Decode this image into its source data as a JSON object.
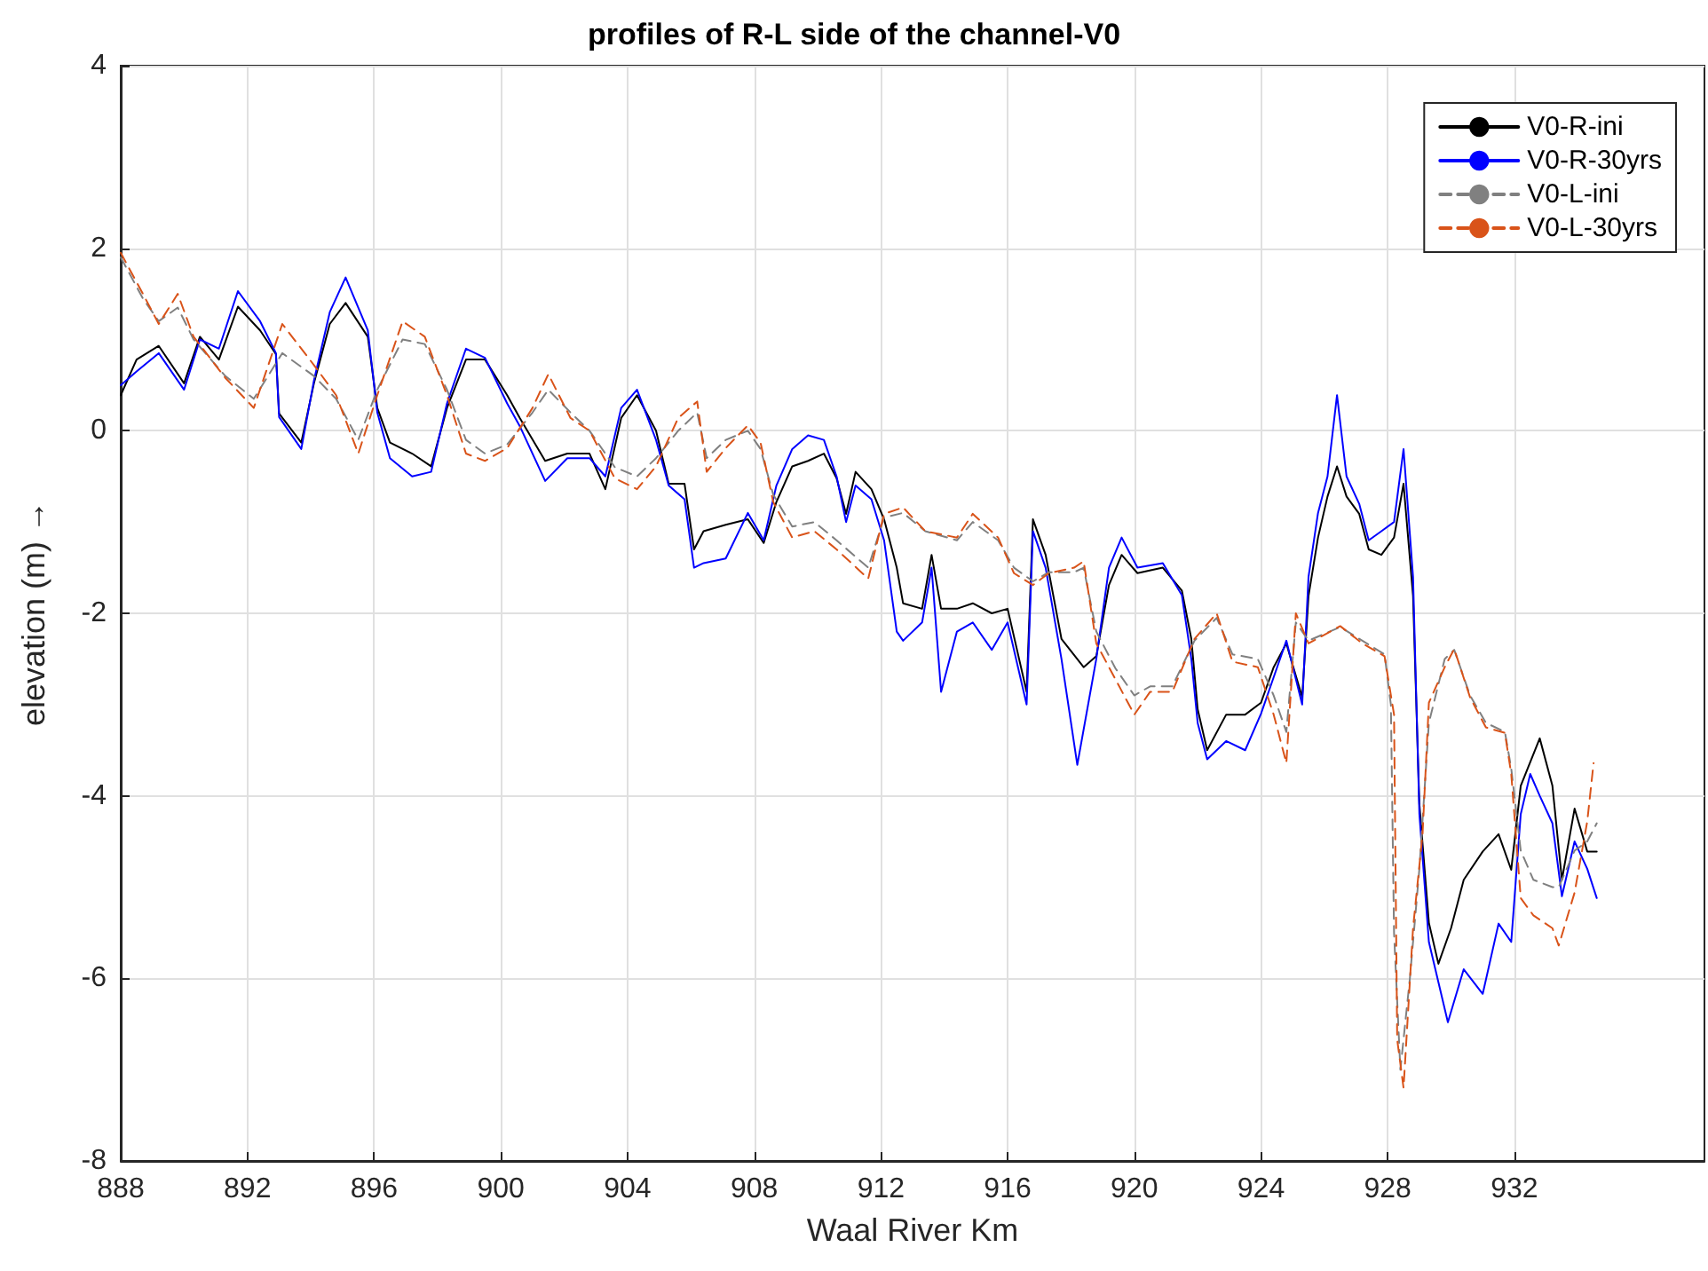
{
  "chart_data": {
    "type": "line",
    "title": "profiles of R-L side of the channel-V0",
    "xlabel": "Waal River Km",
    "ylabel": "elevation (m) →",
    "xlim": [
      888,
      938
    ],
    "xticks": [
      888,
      892,
      896,
      900,
      904,
      908,
      912,
      916,
      920,
      924,
      928,
      932
    ],
    "ylim": [
      -8,
      4
    ],
    "yticks": [
      -8,
      -6,
      -4,
      -2,
      0,
      2,
      4
    ],
    "grid": true,
    "legend": "top right",
    "marker": "none",
    "series": [
      {
        "name": "V0-R-ini",
        "color": "#000000",
        "line_style": "solid",
        "x": [
          888,
          888.5,
          889.2,
          890,
          890.5,
          891.1,
          891.7,
          892.4,
          892.9,
          893,
          893.7,
          894.1,
          894.6,
          895.1,
          895.8,
          896.1,
          896.5,
          897.2,
          897.8,
          898.3,
          898.9,
          899.5,
          900.2,
          900.6,
          901.4,
          902.1,
          902.8,
          903.3,
          903.8,
          904.3,
          904.9,
          905.3,
          905.8,
          906.1,
          906.4,
          907.1,
          907.8,
          908.3,
          908.7,
          909.2,
          909.7,
          910.2,
          910.6,
          910.9,
          911.2,
          911.7,
          912.1,
          912.5,
          912.7,
          913.3,
          913.6,
          913.9,
          914.4,
          914.9,
          915.5,
          916,
          916.6,
          916.8,
          917.2,
          917.7,
          918.4,
          918.8,
          919.2,
          919.6,
          920.1,
          920.9,
          921.5,
          921.8,
          922,
          922.3,
          922.9,
          923.5,
          924,
          924.4,
          924.8,
          925.3,
          925.5,
          925.8,
          926.1,
          926.4,
          926.7,
          927.1,
          927.4,
          927.8,
          928.2,
          928.5,
          928.8,
          929,
          929.3,
          929.6,
          930,
          930.4,
          931,
          931.5,
          931.9,
          932.2,
          932.8,
          933.2,
          933.5,
          933.9,
          934.3,
          934.6
        ],
        "values": [
          0.39,
          0.78,
          0.93,
          0.52,
          1.03,
          0.78,
          1.36,
          1.1,
          0.84,
          0.19,
          -0.13,
          0.52,
          1.17,
          1.4,
          1.03,
          0.25,
          -0.13,
          -0.25,
          -0.39,
          0.25,
          0.78,
          0.78,
          0.39,
          0.14,
          -0.33,
          -0.25,
          -0.25,
          -0.64,
          0.14,
          0.39,
          0,
          -0.58,
          -0.58,
          -1.3,
          -1.1,
          -1.03,
          -0.97,
          -1.23,
          -0.78,
          -0.39,
          -0.33,
          -0.25,
          -0.52,
          -0.91,
          -0.45,
          -0.64,
          -0.97,
          -1.5,
          -1.89,
          -1.95,
          -1.36,
          -1.95,
          -1.95,
          -1.89,
          -2,
          -1.95,
          -2.86,
          -0.97,
          -1.36,
          -2.28,
          -2.59,
          -2.47,
          -1.69,
          -1.36,
          -1.56,
          -1.5,
          -1.75,
          -2.28,
          -3.05,
          -3.5,
          -3.11,
          -3.11,
          -2.98,
          -2.59,
          -2.33,
          -2.92,
          -1.81,
          -1.17,
          -0.72,
          -0.39,
          -0.72,
          -0.91,
          -1.3,
          -1.36,
          -1.17,
          -0.58,
          -1.81,
          -4.09,
          -5.39,
          -5.84,
          -5.45,
          -4.92,
          -4.61,
          -4.42,
          -4.81,
          -3.89,
          -3.37,
          -3.89,
          -4.92,
          -4.14,
          -4.61,
          -4.61
        ]
      },
      {
        "name": "V0-R-30yrs",
        "color": "#0000ff",
        "line_style": "solid",
        "x": [
          888,
          888.5,
          889.2,
          890,
          890.5,
          891.1,
          891.7,
          892.4,
          892.9,
          893,
          893.7,
          894.1,
          894.6,
          895.1,
          895.8,
          896.1,
          896.5,
          897.2,
          897.8,
          898.3,
          898.9,
          899.5,
          900.2,
          900.6,
          901.4,
          902.1,
          902.8,
          903.3,
          903.8,
          904.3,
          904.9,
          905.3,
          905.8,
          906.1,
          906.4,
          907.1,
          907.8,
          908.3,
          908.7,
          909.2,
          909.7,
          910.2,
          910.6,
          910.9,
          911.2,
          911.7,
          912.1,
          912.5,
          912.7,
          913.3,
          913.6,
          913.9,
          914.4,
          914.9,
          915.5,
          916,
          916.6,
          916.8,
          917.2,
          917.7,
          918.2,
          918.8,
          919.2,
          919.6,
          920.1,
          920.9,
          921.5,
          921.8,
          922,
          922.3,
          922.9,
          923.5,
          924,
          924.4,
          924.8,
          925.3,
          925.5,
          925.8,
          926.1,
          926.4,
          926.7,
          927.1,
          927.4,
          927.8,
          928.2,
          928.5,
          928.8,
          929,
          929.3,
          929.9,
          930.4,
          931,
          931.5,
          931.9,
          932.2,
          932.5,
          932.8,
          933.2,
          933.5,
          933.9,
          934.3,
          934.6
        ],
        "values": [
          0.5,
          0.65,
          0.85,
          0.45,
          1.0,
          0.9,
          1.53,
          1.2,
          0.85,
          0.15,
          -0.2,
          0.55,
          1.3,
          1.68,
          1.1,
          0.2,
          -0.3,
          -0.5,
          -0.45,
          0.3,
          0.9,
          0.8,
          0.3,
          0.05,
          -0.55,
          -0.3,
          -0.3,
          -0.5,
          0.25,
          0.45,
          -0.1,
          -0.6,
          -0.75,
          -1.5,
          -1.45,
          -1.4,
          -0.9,
          -1.2,
          -0.6,
          -0.2,
          -0.05,
          -0.1,
          -0.5,
          -1.0,
          -0.6,
          -0.75,
          -1.2,
          -2.2,
          -2.3,
          -2.1,
          -1.5,
          -2.86,
          -2.2,
          -2.1,
          -2.4,
          -2.1,
          -3.0,
          -1.1,
          -1.5,
          -2.5,
          -3.66,
          -2.5,
          -1.5,
          -1.17,
          -1.5,
          -1.45,
          -1.8,
          -2.5,
          -3.2,
          -3.6,
          -3.4,
          -3.5,
          -3.1,
          -2.7,
          -2.3,
          -3.0,
          -1.6,
          -0.9,
          -0.5,
          0.39,
          -0.5,
          -0.8,
          -1.2,
          -1.1,
          -1.0,
          -0.2,
          -1.6,
          -4.2,
          -5.6,
          -6.48,
          -5.9,
          -6.17,
          -5.4,
          -5.6,
          -4.2,
          -3.76,
          -4.0,
          -4.3,
          -5.1,
          -4.5,
          -4.8,
          -5.12
        ]
      },
      {
        "name": "V0-L-ini",
        "color": "#808080",
        "line_style": "dashed",
        "x": [
          888,
          888.7,
          889.2,
          889.8,
          890.3,
          891.3,
          892.2,
          893.1,
          894.1,
          894.8,
          895.5,
          896.1,
          896.9,
          897.6,
          898.3,
          898.9,
          899.5,
          900.2,
          901,
          901.5,
          902.2,
          902.8,
          903.6,
          904.3,
          904.9,
          905.6,
          906.2,
          906.5,
          907.1,
          907.8,
          908.2,
          908.6,
          909.2,
          909.9,
          910.6,
          911.6,
          912.1,
          912.7,
          913.4,
          914.4,
          914.9,
          915.7,
          916.2,
          916.8,
          917.3,
          918.1,
          918.4,
          918.8,
          919.4,
          920,
          920.5,
          921.2,
          921.9,
          922.6,
          923.1,
          923.9,
          924.4,
          924.8,
          925.1,
          925.5,
          926.5,
          927.2,
          927.9,
          928.1,
          928.2,
          928.4,
          928.7,
          929,
          929.3,
          929.8,
          930.1,
          930.6,
          931.1,
          931.7,
          931.9,
          932.2,
          932.6,
          933.2,
          933.4,
          933.9,
          934.3,
          934.6
        ],
        "values": [
          1.9,
          1.45,
          1.2,
          1.35,
          1.0,
          0.6,
          0.35,
          0.85,
          0.6,
          0.35,
          -0.1,
          0.45,
          1.0,
          0.95,
          0.45,
          -0.1,
          -0.25,
          -0.15,
          0.2,
          0.45,
          0.2,
          0.0,
          -0.4,
          -0.5,
          -0.3,
          0.0,
          0.2,
          -0.3,
          -0.1,
          0.0,
          -0.2,
          -0.7,
          -1.05,
          -1.0,
          -1.2,
          -1.5,
          -0.95,
          -0.9,
          -1.1,
          -1.2,
          -1.0,
          -1.2,
          -1.5,
          -1.65,
          -1.55,
          -1.55,
          -1.5,
          -2.2,
          -2.6,
          -2.9,
          -2.8,
          -2.8,
          -2.3,
          -2.05,
          -2.45,
          -2.5,
          -2.9,
          -3.3,
          -2.1,
          -2.3,
          -2.15,
          -2.3,
          -2.45,
          -3.0,
          -5.5,
          -7.0,
          -6.0,
          -4.8,
          -3.2,
          -2.5,
          -2.4,
          -2.9,
          -3.2,
          -3.3,
          -3.7,
          -4.6,
          -4.92,
          -5.0,
          -5.0,
          -4.6,
          -4.5,
          -4.3
        ]
      },
      {
        "name": "V0-L-30yrs",
        "color": "#d95319",
        "line_style": "dashed",
        "x": [
          888,
          888.7,
          889.2,
          889.8,
          890.3,
          891.3,
          892.2,
          893.1,
          894.1,
          894.8,
          895.5,
          896.1,
          896.9,
          897.6,
          898.3,
          898.9,
          899.5,
          900.2,
          901,
          901.5,
          902.2,
          902.8,
          903.6,
          904.3,
          904.9,
          905.6,
          906.2,
          906.5,
          907.1,
          907.8,
          908.2,
          908.6,
          909.2,
          909.9,
          910.6,
          911.6,
          912.1,
          912.7,
          913.4,
          914.4,
          914.9,
          915.7,
          916.2,
          916.8,
          917.3,
          918.1,
          918.4,
          918.8,
          919.4,
          920,
          920.5,
          921.2,
          921.9,
          922.6,
          923.1,
          923.9,
          924.4,
          924.8,
          925.1,
          925.5,
          926.5,
          927.2,
          927.9,
          928.2,
          928.3,
          928.5,
          928.8,
          929.1,
          929.3,
          929.8,
          930.1,
          930.6,
          931.1,
          931.7,
          931.9,
          932.2,
          932.6,
          933.2,
          933.4,
          933.9,
          934.3,
          934.5
        ],
        "values": [
          1.95,
          1.5,
          1.17,
          1.5,
          1.03,
          0.58,
          0.25,
          1.17,
          0.72,
          0.39,
          -0.25,
          0.39,
          1.2,
          1.03,
          0.39,
          -0.25,
          -0.33,
          -0.19,
          0.25,
          0.62,
          0.14,
          0,
          -0.52,
          -0.64,
          -0.39,
          0.14,
          0.32,
          -0.45,
          -0.19,
          0.06,
          -0.13,
          -0.78,
          -1.17,
          -1.1,
          -1.3,
          -1.62,
          -0.91,
          -0.84,
          -1.1,
          -1.17,
          -0.91,
          -1.17,
          -1.56,
          -1.69,
          -1.56,
          -1.5,
          -1.43,
          -2.33,
          -2.72,
          -3.11,
          -2.86,
          -2.86,
          -2.28,
          -2.0,
          -2.53,
          -2.59,
          -3.11,
          -3.64,
          -2.0,
          -2.33,
          -2.14,
          -2.33,
          -2.47,
          -3.11,
          -6.67,
          -7.2,
          -5.45,
          -4.42,
          -2.98,
          -2.59,
          -2.39,
          -2.92,
          -3.25,
          -3.31,
          -3.76,
          -5.12,
          -5.31,
          -5.45,
          -5.64,
          -5.06,
          -4.28,
          -3.64
        ]
      }
    ]
  }
}
